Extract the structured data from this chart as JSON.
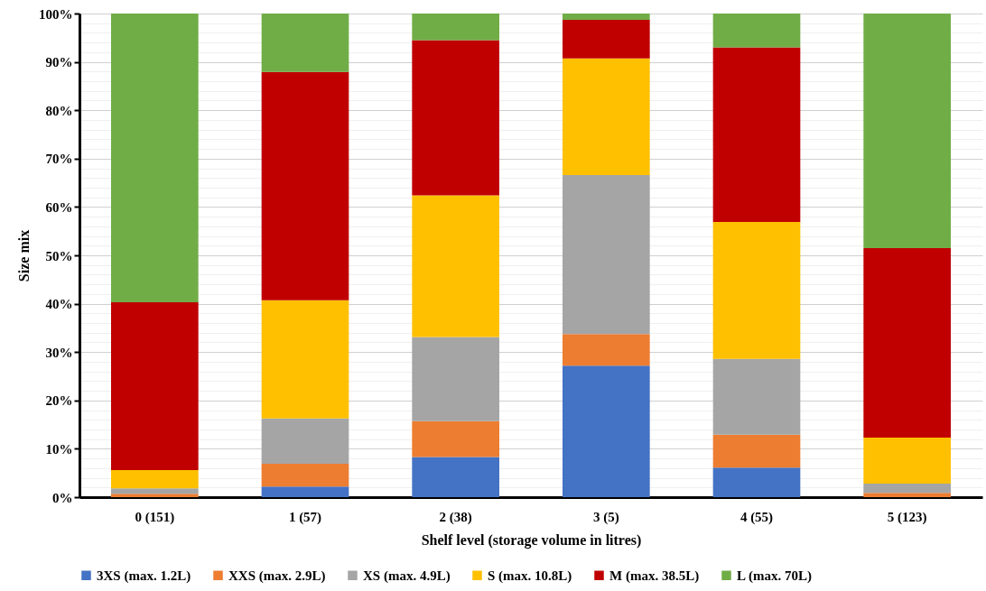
{
  "chart_data": {
    "type": "bar",
    "stacked": true,
    "xlabel": "Shelf level (storage volume in litres)",
    "ylabel": "Size mix",
    "categories": [
      "0 (151)",
      "1 (57)",
      "2 (38)",
      "3 (5)",
      "4 (55)",
      "5 (123)"
    ],
    "series": [
      {
        "name": "3XS (max. 1.2L)",
        "color": "#4472c4",
        "values": [
          0,
          2.2,
          8.3,
          27.2,
          6.1,
          0
        ]
      },
      {
        "name": "XXS (max. 2.9L)",
        "color": "#ed7d31",
        "values": [
          0.7,
          4.7,
          7.4,
          6.5,
          6.8,
          0.9
        ]
      },
      {
        "name": "XS (max. 4.9L)",
        "color": "#a5a5a5",
        "values": [
          1.1,
          9.4,
          17.4,
          32.9,
          15.7,
          1.9
        ]
      },
      {
        "name": "S (max. 10.8L)",
        "color": "#ffc000",
        "values": [
          3.8,
          24.4,
          29.3,
          24.1,
          28.3,
          9.5
        ]
      },
      {
        "name": "M (max. 38.5L)",
        "color": "#c00000",
        "values": [
          34.7,
          47.2,
          32.1,
          8.0,
          36.1,
          39.2
        ]
      },
      {
        "name": "L (max. 70L)",
        "color": "#70ad47",
        "values": [
          59.7,
          12.1,
          5.5,
          1.3,
          7.0,
          48.5
        ]
      }
    ],
    "ylim": [
      0,
      100
    ],
    "yticks": [
      {
        "value": 0,
        "label": "0%"
      },
      {
        "value": 2,
        "label": null
      },
      {
        "value": 4,
        "label": null
      },
      {
        "value": 6,
        "label": null
      },
      {
        "value": 8,
        "label": null
      },
      {
        "value": 10,
        "label": "10%"
      },
      {
        "value": 12,
        "label": null
      },
      {
        "value": 14,
        "label": null
      },
      {
        "value": 16,
        "label": null
      },
      {
        "value": 18,
        "label": null
      },
      {
        "value": 20,
        "label": "20%"
      },
      {
        "value": 22,
        "label": null
      },
      {
        "value": 24,
        "label": null
      },
      {
        "value": 26,
        "label": null
      },
      {
        "value": 28,
        "label": null
      },
      {
        "value": 30,
        "label": "30%"
      },
      {
        "value": 32,
        "label": null
      },
      {
        "value": 34,
        "label": null
      },
      {
        "value": 36,
        "label": null
      },
      {
        "value": 38,
        "label": null
      },
      {
        "value": 40,
        "label": "40%"
      },
      {
        "value": 42,
        "label": null
      },
      {
        "value": 44,
        "label": null
      },
      {
        "value": 46,
        "label": null
      },
      {
        "value": 48,
        "label": null
      },
      {
        "value": 50,
        "label": "50%"
      },
      {
        "value": 52,
        "label": null
      },
      {
        "value": 54,
        "label": null
      },
      {
        "value": 56,
        "label": null
      },
      {
        "value": 58,
        "label": null
      },
      {
        "value": 60,
        "label": "60%"
      },
      {
        "value": 62,
        "label": null
      },
      {
        "value": 64,
        "label": null
      },
      {
        "value": 66,
        "label": null
      },
      {
        "value": 68,
        "label": null
      },
      {
        "value": 70,
        "label": "70%"
      },
      {
        "value": 72,
        "label": null
      },
      {
        "value": 74,
        "label": null
      },
      {
        "value": 76,
        "label": null
      },
      {
        "value": 78,
        "label": null
      },
      {
        "value": 80,
        "label": "80%"
      },
      {
        "value": 82,
        "label": null
      },
      {
        "value": 84,
        "label": null
      },
      {
        "value": 86,
        "label": null
      },
      {
        "value": 88,
        "label": null
      },
      {
        "value": 90,
        "label": "90%"
      },
      {
        "value": 92,
        "label": null
      },
      {
        "value": 94,
        "label": null
      },
      {
        "value": 96,
        "label": null
      },
      {
        "value": 98,
        "label": null
      },
      {
        "value": 100,
        "label": "100%"
      }
    ],
    "grid": "y",
    "legend": "bottom"
  }
}
